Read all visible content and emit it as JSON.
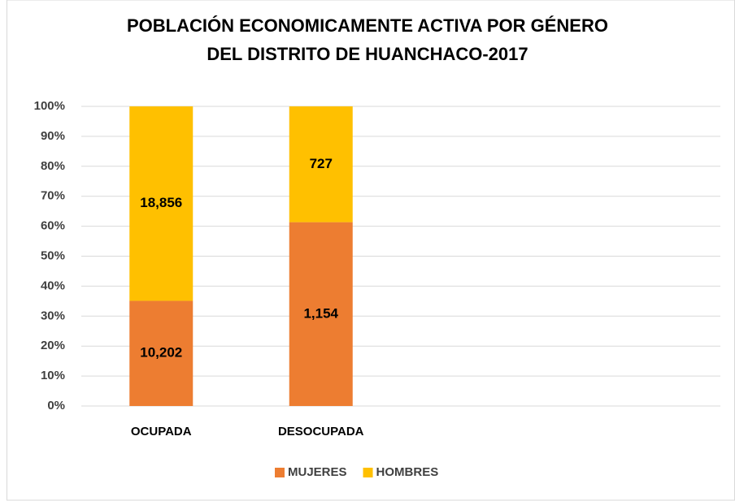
{
  "chart_data": {
    "type": "bar",
    "stacking": "percent",
    "title": [
      "POBLACIÓN ECONOMICAMENTE ACTIVA POR GÉNERO",
      "DEL DISTRITO DE HUANCHACO-2017"
    ],
    "categories": [
      "OCUPADA",
      "DESOCUPADA",
      null,
      null
    ],
    "series": [
      {
        "name": "MUJERES",
        "color": "#ed7d31",
        "values": [
          10202,
          1154,
          null,
          null
        ],
        "value_labels": [
          "10,202",
          "1,154",
          null,
          null
        ]
      },
      {
        "name": "HOMBRES",
        "color": "#ffc000",
        "values": [
          18856,
          727,
          null,
          null
        ],
        "value_labels": [
          "18,856",
          "727",
          null,
          null
        ]
      }
    ],
    "ylim": [
      0,
      100
    ],
    "yticks": [
      {
        "value": 0,
        "label": "0%"
      },
      {
        "value": 10,
        "label": "10%"
      },
      {
        "value": 20,
        "label": "20%"
      },
      {
        "value": 30,
        "label": "30%"
      },
      {
        "value": 40,
        "label": "40%"
      },
      {
        "value": 50,
        "label": "50%"
      },
      {
        "value": 60,
        "label": "60%"
      },
      {
        "value": 70,
        "label": "70%"
      },
      {
        "value": 80,
        "label": "80%"
      },
      {
        "value": 90,
        "label": "90%"
      },
      {
        "value": 100,
        "label": "100%"
      }
    ],
    "grid": true,
    "legend": "bottom"
  }
}
